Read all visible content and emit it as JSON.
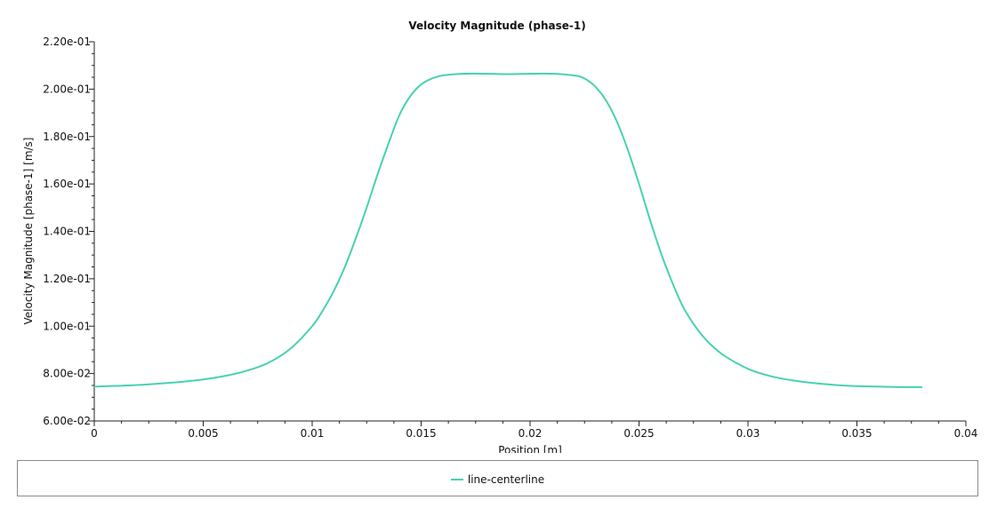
{
  "chart_data": {
    "type": "line",
    "title": "Velocity Magnitude (phase-1)",
    "xlabel": "Position [m]",
    "ylabel": "Velocity Magnitude [phase-1] [m/s]",
    "xlim": [
      0,
      0.04
    ],
    "ylim": [
      0.06,
      0.22
    ],
    "x_ticks": [
      0,
      0.005,
      0.01,
      0.015,
      0.02,
      0.025,
      0.03,
      0.035,
      0.04
    ],
    "x_tick_labels": [
      "0",
      "0.005",
      "0.01",
      "0.015",
      "0.02",
      "0.025",
      "0.03",
      "0.035",
      "0.04"
    ],
    "y_ticks": [
      0.06,
      0.08,
      0.1,
      0.12,
      0.14,
      0.16,
      0.18,
      0.2,
      0.22
    ],
    "y_tick_labels": [
      "6.00e-02",
      "8.00e-02",
      "1.00e-01",
      "1.20e-01",
      "1.40e-01",
      "1.60e-01",
      "1.80e-01",
      "2.00e-01",
      "2.20e-01"
    ],
    "grid": false,
    "legend_position": "bottom",
    "series": [
      {
        "name": "line-centerline",
        "color": "#48d1b0",
        "x": [
          0,
          0.002,
          0.004,
          0.005,
          0.006,
          0.007,
          0.008,
          0.009,
          0.01,
          0.0105,
          0.011,
          0.0115,
          0.012,
          0.0125,
          0.013,
          0.0135,
          0.014,
          0.0145,
          0.015,
          0.0155,
          0.016,
          0.017,
          0.018,
          0.019,
          0.02,
          0.021,
          0.022,
          0.0225,
          0.023,
          0.0235,
          0.024,
          0.0245,
          0.025,
          0.0255,
          0.026,
          0.0265,
          0.027,
          0.0275,
          0.028,
          0.0285,
          0.029,
          0.03,
          0.031,
          0.032,
          0.033,
          0.034,
          0.035,
          0.036,
          0.037,
          0.038
        ],
        "y": [
          0.0745,
          0.0752,
          0.0765,
          0.0775,
          0.079,
          0.0812,
          0.0846,
          0.0905,
          0.1,
          0.1068,
          0.115,
          0.125,
          0.137,
          0.15,
          0.164,
          0.177,
          0.189,
          0.197,
          0.202,
          0.2045,
          0.2058,
          0.2065,
          0.2065,
          0.2063,
          0.2065,
          0.2065,
          0.2058,
          0.2045,
          0.201,
          0.195,
          0.186,
          0.174,
          0.16,
          0.145,
          0.131,
          0.119,
          0.1085,
          0.101,
          0.095,
          0.0905,
          0.087,
          0.082,
          0.079,
          0.0772,
          0.076,
          0.0752,
          0.0747,
          0.0745,
          0.0743,
          0.0743
        ]
      }
    ]
  }
}
